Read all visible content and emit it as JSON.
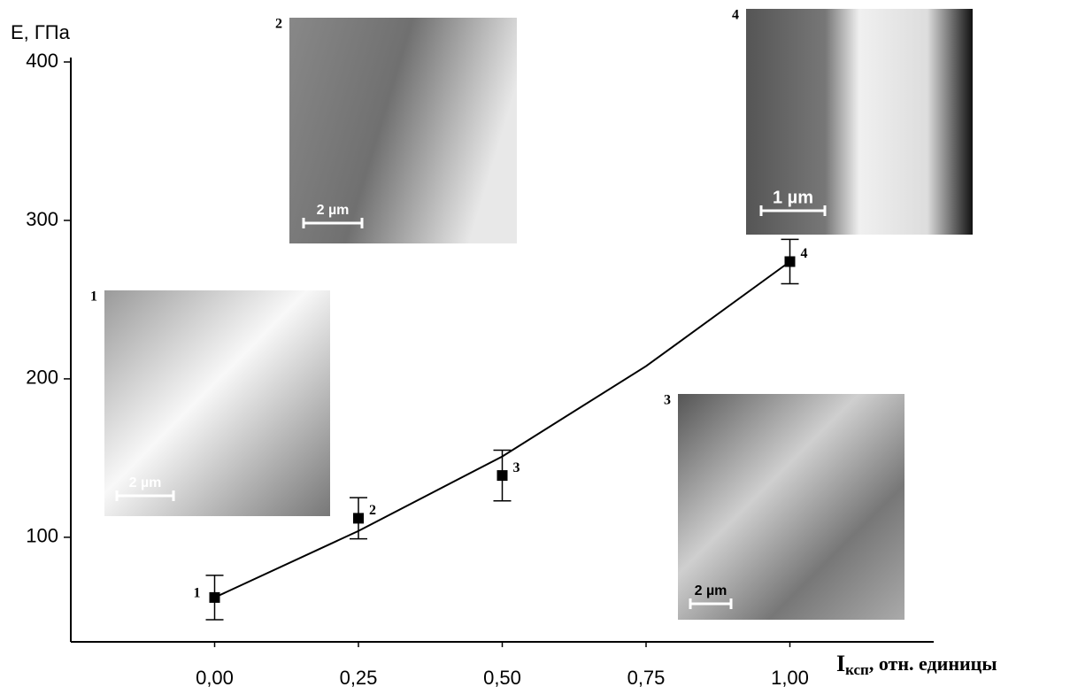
{
  "chart_data": {
    "type": "scatter",
    "ylabel": "E, ГПа",
    "xlabel": {
      "main": "I",
      "sub": "ксп",
      "rest": ", отн. единицы"
    },
    "xlim": [
      -0.25,
      1.25
    ],
    "ylim": [
      34,
      400
    ],
    "xticks": [
      {
        "value": 0,
        "label": "0,00"
      },
      {
        "value": 0.25,
        "label": "0,25"
      },
      {
        "value": 0.5,
        "label": "0,50"
      },
      {
        "value": 0.75,
        "label": "0,75"
      },
      {
        "value": 1,
        "label": "1,00"
      }
    ],
    "yticks": [
      100,
      200,
      300,
      400
    ],
    "x": [
      0,
      0.25,
      0.5,
      1
    ],
    "values": [
      62,
      112,
      139,
      274
    ],
    "errors": [
      14,
      13,
      16,
      14
    ],
    "point_labels": [
      "1",
      "2",
      "3",
      "4"
    ],
    "color": "#000000",
    "fit": {
      "x": [
        0,
        0.25,
        0.5,
        0.75,
        1
      ],
      "values": [
        62,
        104,
        151,
        208,
        274
      ]
    },
    "insets": [
      {
        "label": "1",
        "scale": "2 µm"
      },
      {
        "label": "2",
        "scale": "2 µm"
      },
      {
        "label": "3",
        "scale": "2 µm"
      },
      {
        "label": "4",
        "scale": "1 µm"
      }
    ]
  }
}
